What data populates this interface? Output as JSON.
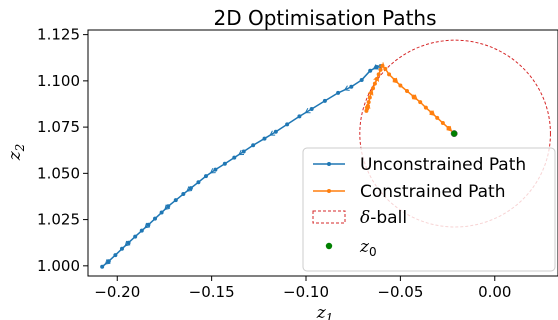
{
  "chart_data": {
    "type": "line",
    "title": "2D Optimisation Paths",
    "xlabel": {
      "base": "z",
      "sub": "1"
    },
    "ylabel": {
      "base": "z",
      "sub": "2"
    },
    "xlim": [
      -0.2155,
      0.0335
    ],
    "ylim": [
      0.9945,
      1.1275
    ],
    "xticks": [
      {
        "value": -0.2,
        "label": "−0.20"
      },
      {
        "value": -0.15,
        "label": "−0.15"
      },
      {
        "value": -0.1,
        "label": "−0.10"
      },
      {
        "value": -0.05,
        "label": "−0.05"
      },
      {
        "value": 0.0,
        "label": "0.00"
      }
    ],
    "yticks": [
      {
        "value": 1.0,
        "label": "1.000"
      },
      {
        "value": 1.025,
        "label": "1.025"
      },
      {
        "value": 1.05,
        "label": "1.050"
      },
      {
        "value": 1.075,
        "label": "1.075"
      },
      {
        "value": 1.1,
        "label": "1.100"
      },
      {
        "value": 1.125,
        "label": "1.125"
      }
    ],
    "grid": false,
    "legend_position": "lower-right",
    "series": [
      {
        "name": "Unconstrained Path",
        "color": "#1f77b4",
        "marker": "dot",
        "x": [
          -0.208,
          -0.2045,
          -0.201,
          -0.1975,
          -0.194,
          -0.1905,
          -0.187,
          -0.1835,
          -0.18,
          -0.1765,
          -0.173,
          -0.169,
          -0.165,
          -0.161,
          -0.157,
          -0.153,
          -0.148,
          -0.143,
          -0.138,
          -0.133,
          -0.128,
          -0.122,
          -0.116,
          -0.11,
          -0.1035,
          -0.097,
          -0.09,
          -0.083,
          -0.076,
          -0.0705,
          -0.066,
          -0.0625,
          -0.0605
        ],
        "y": [
          0.9995,
          1.0025,
          1.0058,
          1.0092,
          1.0125,
          1.0158,
          1.019,
          1.0222,
          1.0255,
          1.0288,
          1.0322,
          1.0355,
          1.0388,
          1.042,
          1.0452,
          1.0485,
          1.052,
          1.0552,
          1.0585,
          1.0618,
          1.0652,
          1.0688,
          1.0725,
          1.0765,
          1.0808,
          1.0848,
          1.0892,
          1.0935,
          1.0968,
          1.1005,
          1.1055,
          1.1075,
          1.108
        ]
      },
      {
        "name": "Constrained Path",
        "color": "#ff7f0e",
        "marker": "dot",
        "x": [
          -0.0215,
          -0.0245,
          -0.0275,
          -0.0305,
          -0.0335,
          -0.0365,
          -0.0395,
          -0.043,
          -0.0465,
          -0.05,
          -0.053,
          -0.056,
          -0.058,
          -0.0595,
          -0.0605,
          -0.0615,
          -0.0625,
          -0.0635,
          -0.0645,
          -0.0655,
          -0.0662,
          -0.0668,
          -0.0672,
          -0.0676,
          -0.068
        ],
        "y": [
          1.0715,
          1.0745,
          1.0772,
          1.08,
          1.0828,
          1.0855,
          1.0885,
          1.0915,
          1.0945,
          1.0975,
          1.1005,
          1.1035,
          1.1065,
          1.1082,
          1.106,
          1.1035,
          1.101,
          1.0985,
          1.096,
          1.0935,
          1.091,
          1.0885,
          1.0865,
          1.085,
          1.0838
        ]
      }
    ],
    "delta_ball": {
      "name": "δ-ball",
      "center": [
        -0.021,
        1.0715
      ],
      "radius": 0.0505,
      "color": "#d62728"
    },
    "z0": {
      "name": "z",
      "sub": "0",
      "x": -0.0215,
      "y": 1.0715,
      "color": "#008000"
    },
    "legend": [
      {
        "key": "unconstrained",
        "label": "Unconstrained Path"
      },
      {
        "key": "constrained",
        "label": "Constrained Path"
      },
      {
        "key": "ball",
        "label_sym": "δ",
        "label_rest": "-ball"
      },
      {
        "key": "z0",
        "label_base": "z",
        "label_sub": "0"
      }
    ]
  }
}
